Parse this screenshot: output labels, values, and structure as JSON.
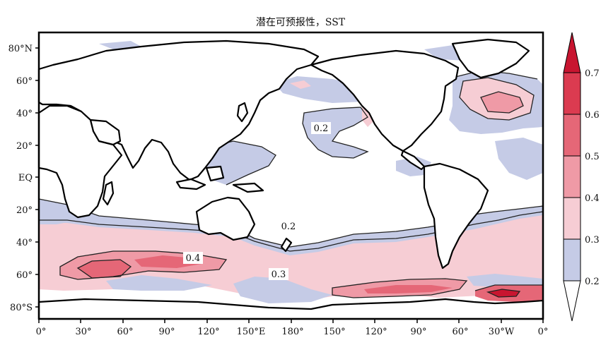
{
  "title": "潜在可预报性，SST",
  "map": {
    "lat_labels": [
      "80°N",
      "60°",
      "40°",
      "20°",
      "EQ",
      "20°",
      "40°",
      "60°",
      "80°S"
    ],
    "lon_labels": [
      "0°",
      "30°",
      "60°",
      "90°",
      "120°",
      "150°E",
      "180°",
      "150°",
      "120°",
      "90°",
      "60°",
      "30°W",
      "0°"
    ],
    "contour_labels": [
      "0.2",
      "0.2",
      "0.4",
      "0.3"
    ]
  },
  "colorbar": {
    "ticks": [
      "0.7",
      "0.6",
      "0.5",
      "0.4",
      "0.3",
      "0.2"
    ],
    "colors": {
      "0.2-0.3": "#c5cbe6",
      "0.3-0.4": "#f6cdd4",
      "0.4-0.5": "#ef9aa6",
      "0.5-0.6": "#e56777",
      "0.6-0.7": "#db3b50",
      "0.7+": "#c81530"
    }
  },
  "colors": {
    "background": "#ffffff",
    "land": "#ffffff",
    "coast": "#000000"
  }
}
